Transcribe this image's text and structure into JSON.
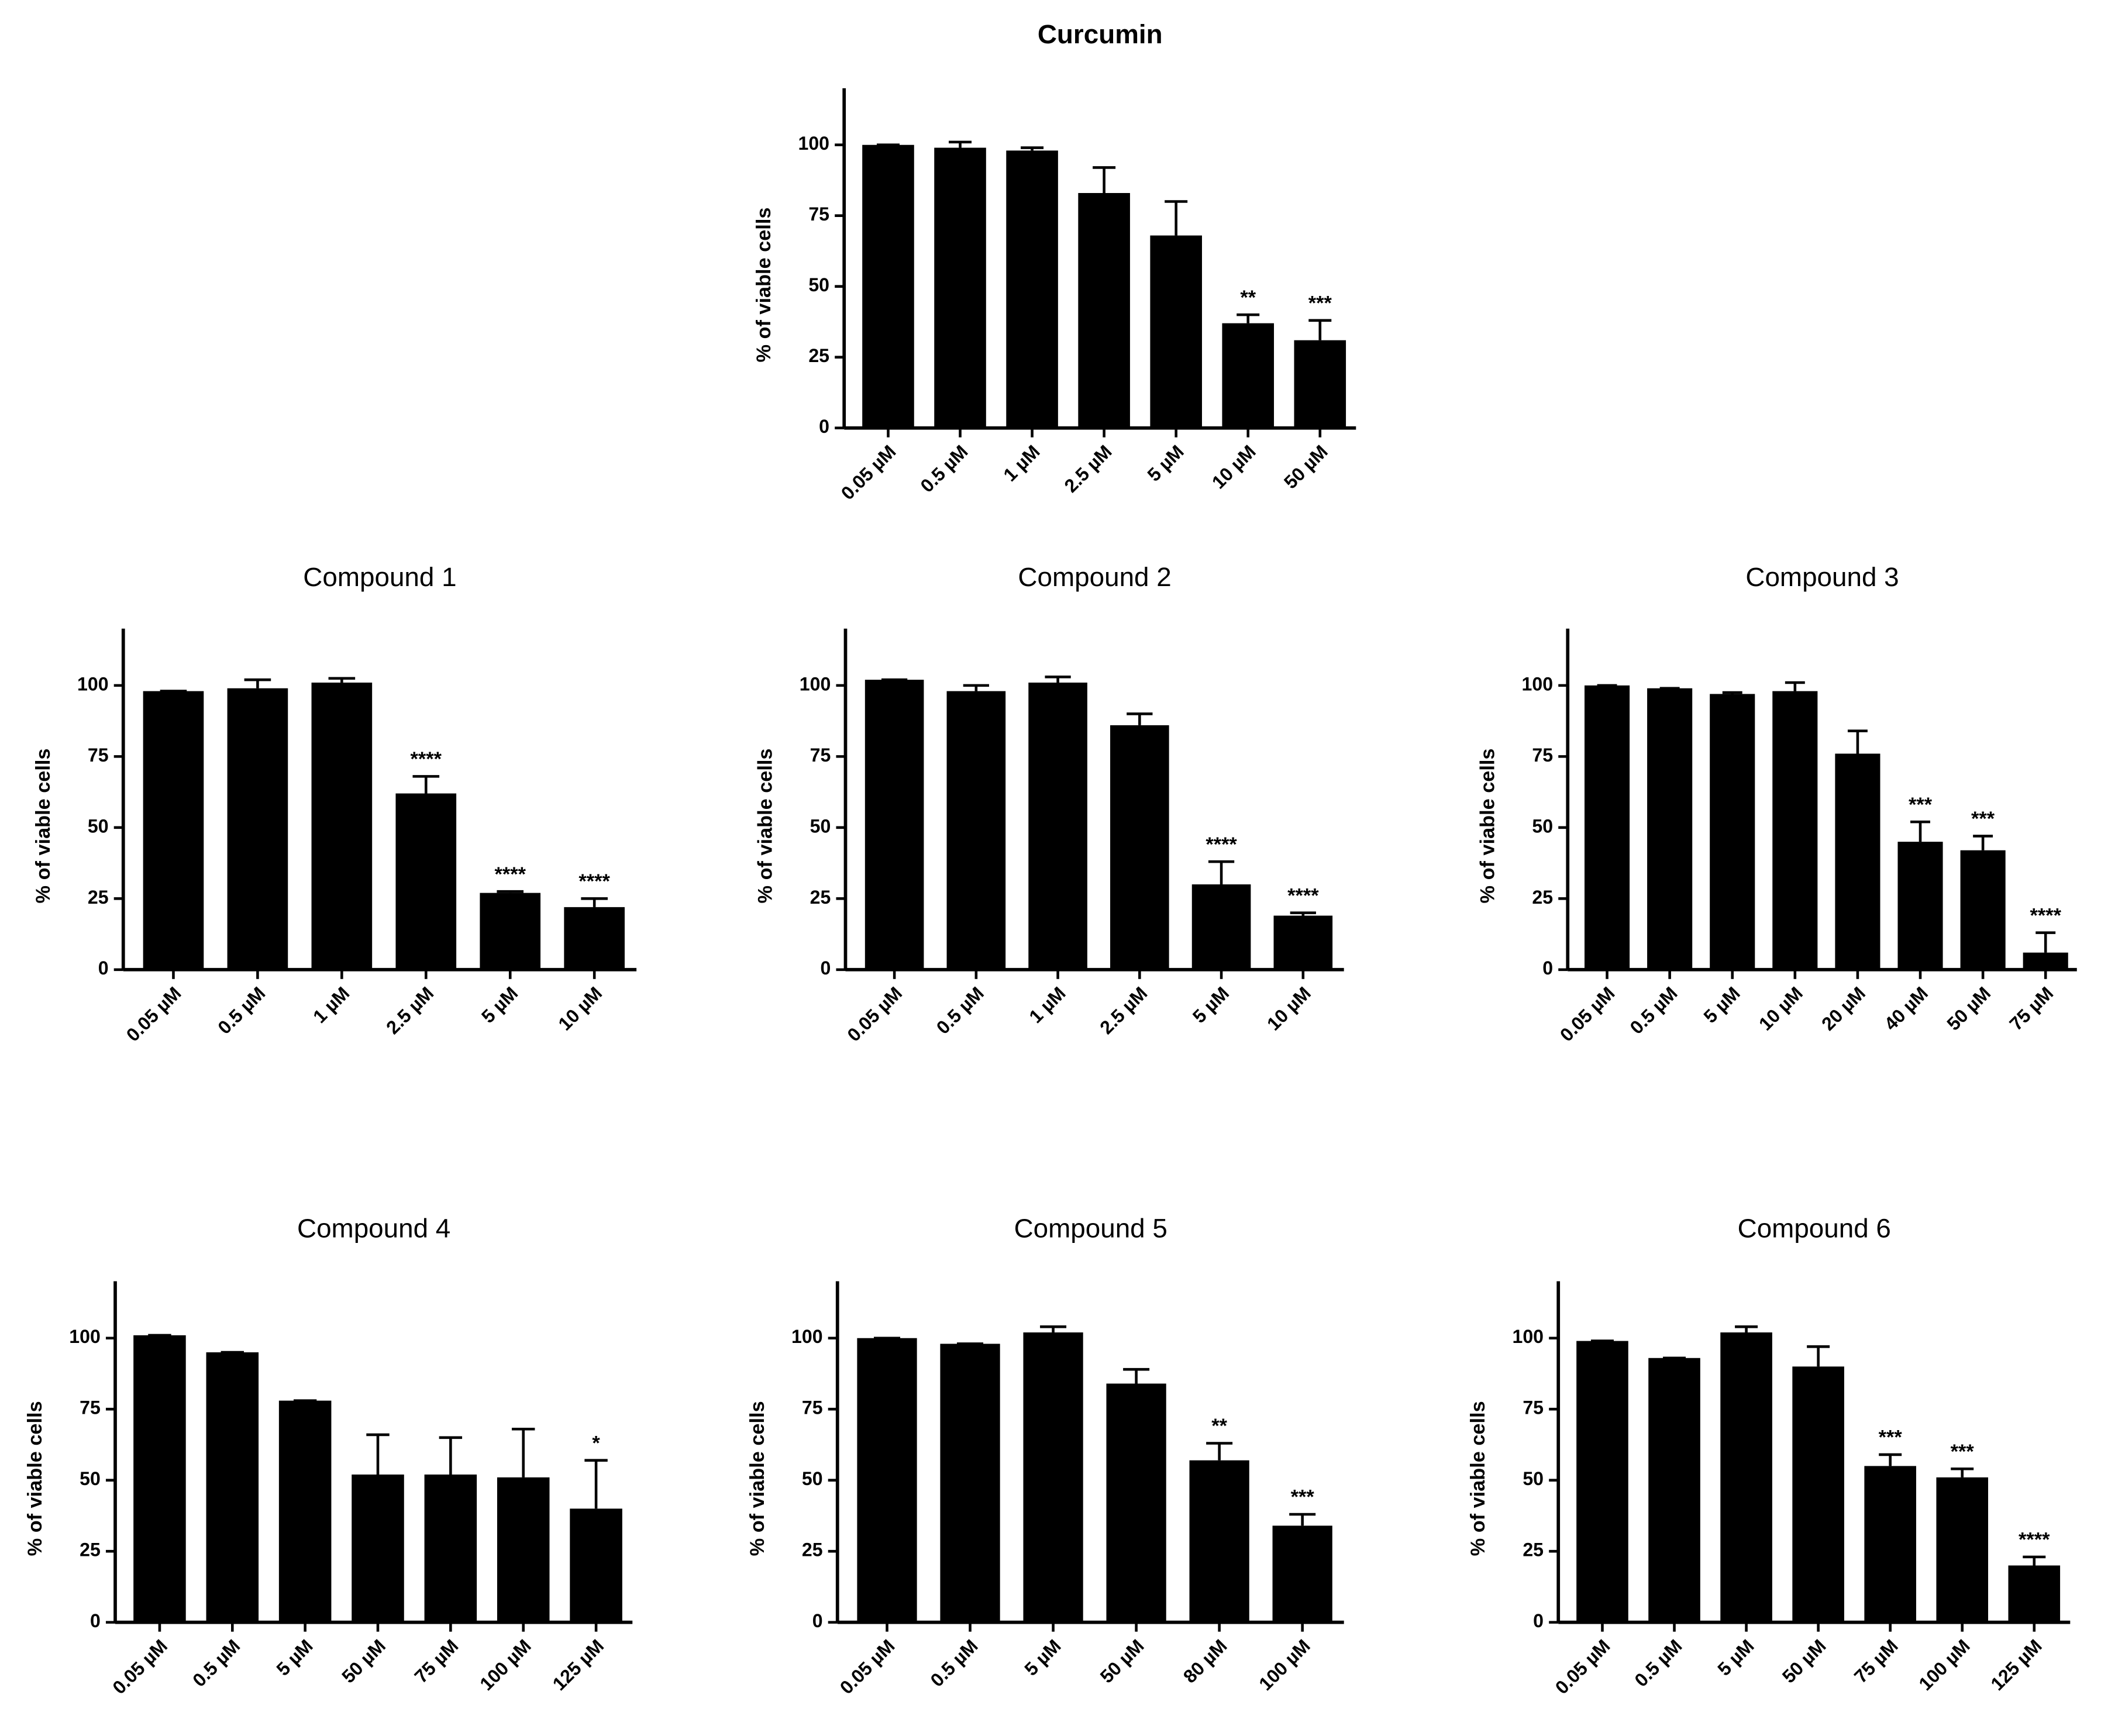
{
  "chart_data": [
    {
      "type": "bar",
      "title": "Curcumin",
      "title_weight": "bold",
      "y_label": "% of viable cells",
      "color": "#000000",
      "categories": [
        "0.05 µM",
        "0.5 µM",
        "1 µM",
        "2.5 µM",
        "5 µM",
        "10 µM",
        "50 µM"
      ],
      "values": [
        100,
        99,
        98,
        83,
        68,
        37,
        31
      ],
      "errors": [
        0,
        2,
        1,
        9,
        12,
        3,
        7
      ],
      "annotations": [
        null,
        null,
        null,
        null,
        null,
        "**",
        "***"
      ],
      "ylim": [
        0,
        120
      ],
      "yticks": [
        0,
        25,
        50,
        75,
        100
      ]
    },
    {
      "type": "bar",
      "title": "Compound 1",
      "title_weight": "normal",
      "y_label": "% of viable cells",
      "color": "#000000",
      "categories": [
        "0.05 µM",
        "0.5 µM",
        "1 µM",
        "2.5 µM",
        "5 µM",
        "10 µM"
      ],
      "values": [
        98,
        99,
        101,
        62,
        27,
        22
      ],
      "errors": [
        0,
        3,
        1.5,
        6,
        0.5,
        3
      ],
      "annotations": [
        null,
        null,
        null,
        "****",
        "****",
        "****"
      ],
      "ylim": [
        0,
        120
      ],
      "yticks": [
        0,
        25,
        50,
        75,
        100
      ]
    },
    {
      "type": "bar",
      "title": "Compound 2",
      "title_weight": "normal",
      "y_label": "% of viable cells",
      "color": "#000000",
      "categories": [
        "0.05 µM",
        "0.5 µM",
        "1 µM",
        "2.5 µM",
        "5 µM",
        "10 µM"
      ],
      "values": [
        102,
        98,
        101,
        86,
        30,
        19
      ],
      "errors": [
        0,
        2,
        2,
        4,
        8,
        1
      ],
      "annotations": [
        null,
        null,
        null,
        null,
        "****",
        "****"
      ],
      "ylim": [
        0,
        120
      ],
      "yticks": [
        0,
        25,
        50,
        75,
        100
      ]
    },
    {
      "type": "bar",
      "title": "Compound 3",
      "title_weight": "normal",
      "y_label": "% of viable cells",
      "color": "#000000",
      "categories": [
        "0.05 µM",
        "0.5 µM",
        "5 µM",
        "10 µM",
        "20 µM",
        "40 µM",
        "50 µM",
        "75 µM"
      ],
      "values": [
        100,
        99,
        97,
        98,
        76,
        45,
        42,
        6
      ],
      "errors": [
        0,
        0,
        0.5,
        3,
        8,
        7,
        5,
        7
      ],
      "annotations": [
        null,
        null,
        null,
        null,
        null,
        "***",
        "***",
        "****"
      ],
      "ylim": [
        0,
        120
      ],
      "yticks": [
        0,
        25,
        50,
        75,
        100
      ]
    },
    {
      "type": "bar",
      "title": "Compound 4",
      "title_weight": "normal",
      "y_label": "% of viable cells",
      "color": "#000000",
      "categories": [
        "0.05 µM",
        "0.5 µM",
        "5 µM",
        "50 µM",
        "75 µM",
        "100 µM",
        "125 µM"
      ],
      "values": [
        101,
        95,
        78,
        52,
        52,
        51,
        40
      ],
      "errors": [
        0,
        0,
        0,
        14,
        13,
        17,
        17
      ],
      "annotations": [
        null,
        null,
        null,
        null,
        null,
        null,
        "*"
      ],
      "ylim": [
        0,
        120
      ],
      "yticks": [
        0,
        25,
        50,
        75,
        100
      ]
    },
    {
      "type": "bar",
      "title": "Compound 5",
      "title_weight": "normal",
      "y_label": "% of viable cells",
      "color": "#000000",
      "categories": [
        "0.05 µM",
        "0.5 µM",
        "5 µM",
        "50 µM",
        "80 µM",
        "100 µM"
      ],
      "values": [
        100,
        98,
        102,
        84,
        57,
        34
      ],
      "errors": [
        0,
        0,
        2,
        5,
        6,
        4
      ],
      "annotations": [
        null,
        null,
        null,
        null,
        "**",
        "***"
      ],
      "ylim": [
        0,
        120
      ],
      "yticks": [
        0,
        25,
        50,
        75,
        100
      ]
    },
    {
      "type": "bar",
      "title": "Compound 6",
      "title_weight": "normal",
      "y_label": "% of viable cells",
      "color": "#000000",
      "categories": [
        "0.05 µM",
        "0.5 µM",
        "5 µM",
        "50 µM",
        "75 µM",
        "100 µM",
        "125 µM"
      ],
      "values": [
        99,
        93,
        102,
        90,
        55,
        51,
        20
      ],
      "errors": [
        0,
        0,
        2,
        7,
        4,
        3,
        3
      ],
      "annotations": [
        null,
        null,
        null,
        null,
        "***",
        "***",
        "****"
      ],
      "ylim": [
        0,
        120
      ],
      "yticks": [
        0,
        25,
        50,
        75,
        100
      ]
    }
  ]
}
